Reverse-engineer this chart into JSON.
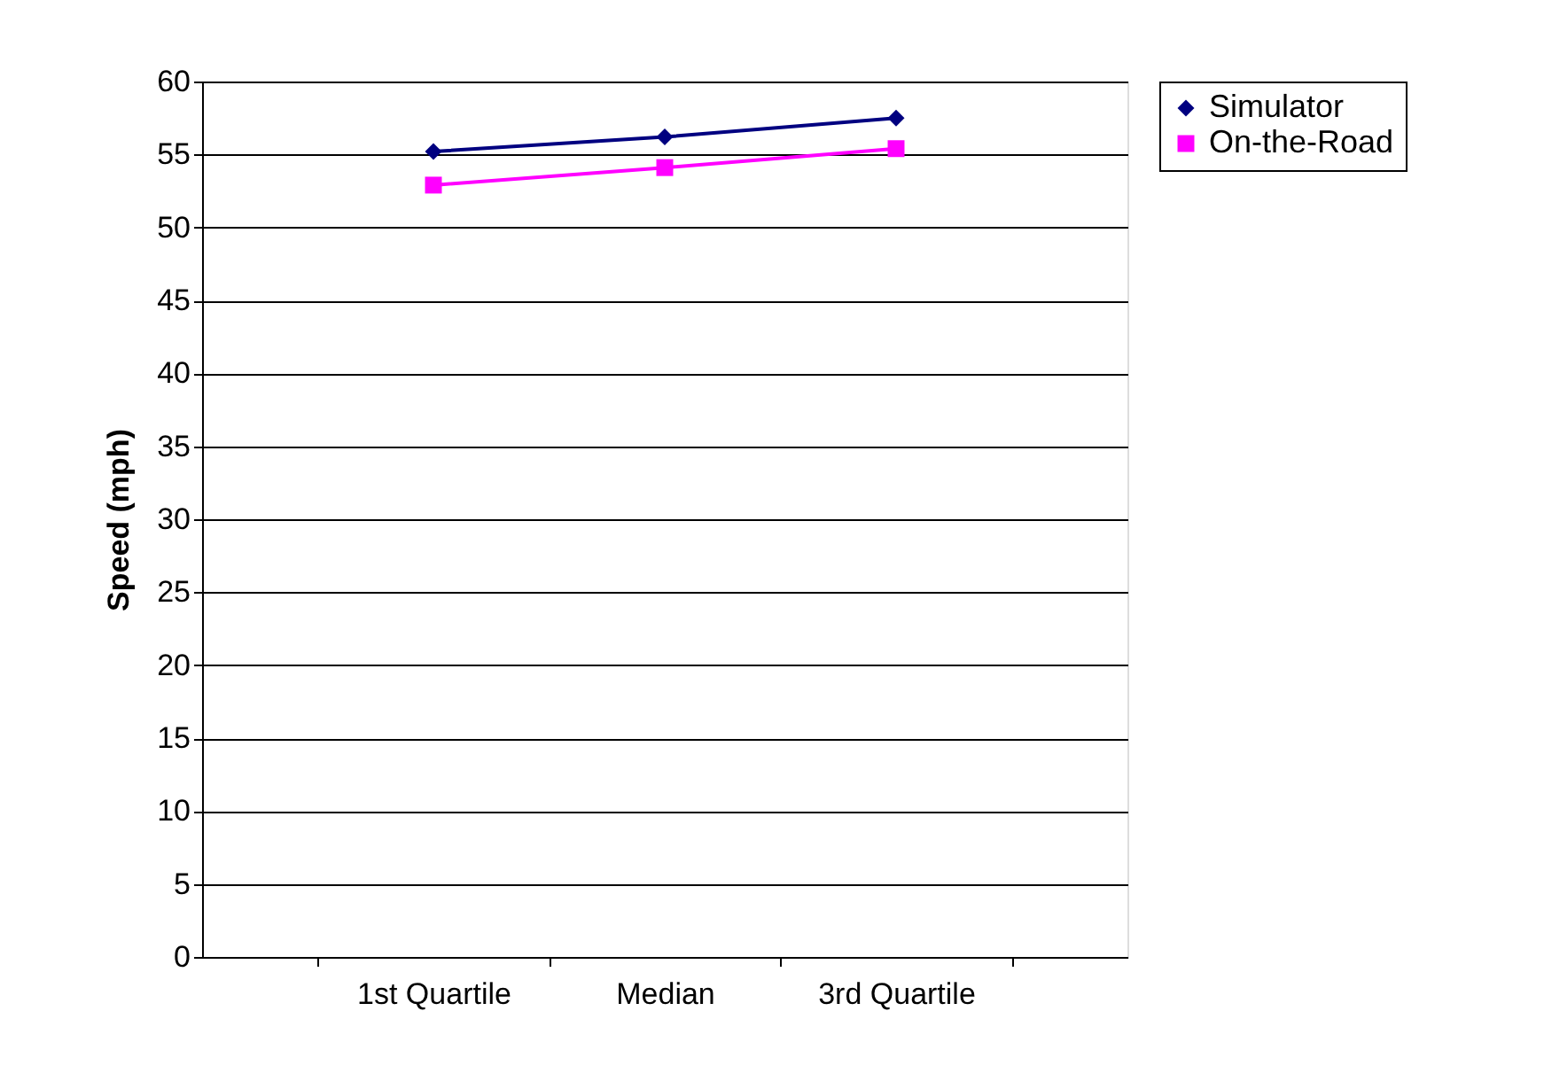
{
  "chart_data": {
    "type": "line",
    "ylabel": "Speed (mph)",
    "categories": [
      "1st Quartile",
      "Median",
      "3rd Quartile"
    ],
    "series": [
      {
        "name": "Simulator",
        "color": "#000080",
        "marker": "diamond",
        "values": [
          55.2,
          56.2,
          57.5
        ]
      },
      {
        "name": "On-the-Road",
        "color": "#ff00ff",
        "marker": "square",
        "values": [
          52.9,
          54.1,
          55.4
        ]
      }
    ],
    "ylim": [
      0,
      60
    ],
    "yticks": [
      0,
      5,
      10,
      15,
      20,
      25,
      30,
      35,
      40,
      45,
      50,
      55,
      60
    ],
    "grid": "y",
    "legend": "right",
    "line_style": "solid"
  }
}
